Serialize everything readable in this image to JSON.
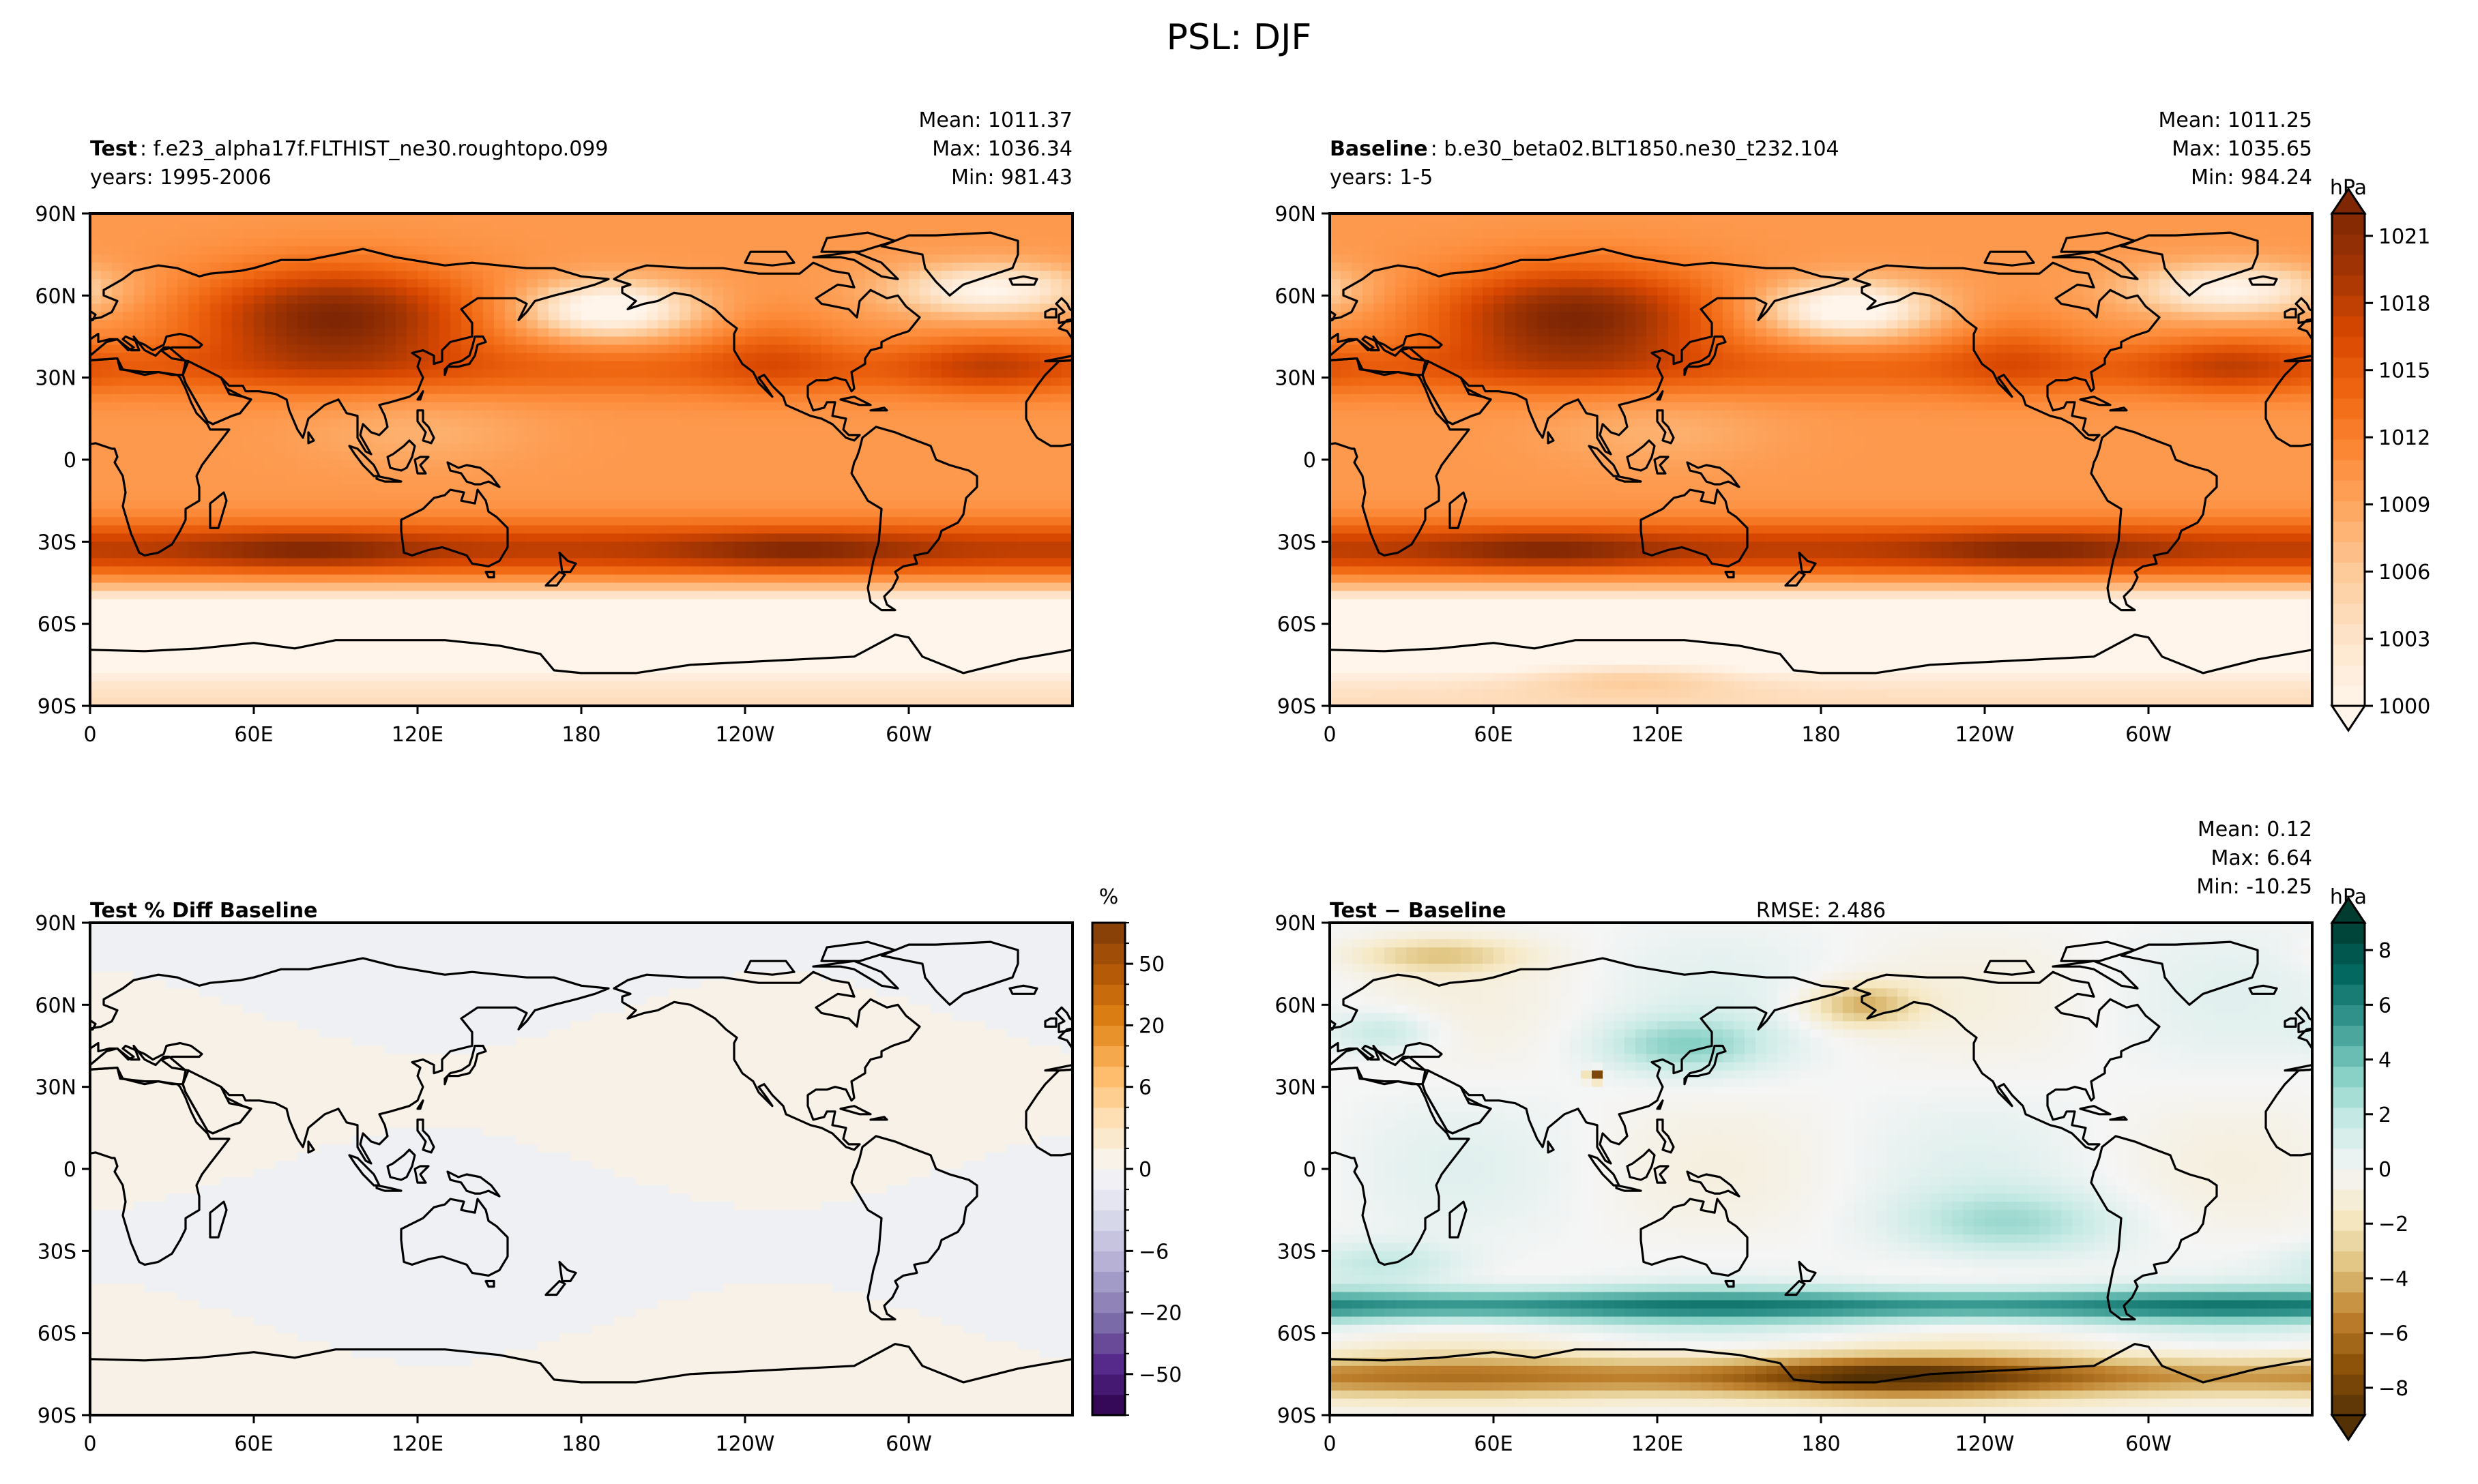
{
  "figure_title": "PSL: DJF",
  "colors": {
    "frame": "#000000",
    "coast": "#000000",
    "ocean_fill_main": "#f4f1ee",
    "psl_scale": [
      "#fff5eb",
      "#fee6ce",
      "#fdd0a2",
      "#fdae6b",
      "#fd8d3c",
      "#f16913",
      "#d94801",
      "#a63603",
      "#7f2704"
    ],
    "diff_pct_scale": [
      "#2d004b",
      "#542788",
      "#8073ac",
      "#b2abd2",
      "#d8daeb",
      "#f7f7f7",
      "#fee0b6",
      "#fdb863",
      "#e08214",
      "#b35806",
      "#7f3b08"
    ],
    "diff_abs_scale": [
      "#543005",
      "#8c510a",
      "#bf812d",
      "#dfc27d",
      "#f6e8c3",
      "#f5f5f5",
      "#c7eae5",
      "#80cdc1",
      "#35978f",
      "#01665e",
      "#003c30"
    ]
  },
  "chart_data": [
    {
      "id": "test",
      "type": "heatmap",
      "title_bold": "Test",
      "title_rest": " : f.e23_alpha17f.FLTHIST_ne30.roughtopo.099",
      "years_label": "years: 1995-2006",
      "stats": {
        "mean": "Mean: 1011.37",
        "max": "Max: 1036.34",
        "min": "Min: 981.43"
      },
      "xticks": [
        "0",
        "60E",
        "120E",
        "180",
        "120W",
        "60W"
      ],
      "yticks": [
        "90N",
        "60N",
        "30N",
        "0",
        "30S",
        "60S",
        "90S"
      ],
      "lat_range": [
        -90,
        90
      ],
      "lon_range": [
        0,
        360
      ],
      "units": "hPa",
      "value_range": [
        1000,
        1022
      ]
    },
    {
      "id": "baseline",
      "type": "heatmap",
      "title_bold": "Baseline",
      "title_rest": " : b.e30_beta02.BLT1850.ne30_t232.104",
      "years_label": "years: 1-5",
      "stats": {
        "mean": "Mean: 1011.25",
        "max": "Max: 1035.65",
        "min": "Min: 984.24"
      },
      "xticks": [
        "0",
        "60E",
        "120E",
        "180",
        "120W",
        "60W"
      ],
      "yticks": [
        "90N",
        "60N",
        "30N",
        "0",
        "30S",
        "60S",
        "90S"
      ],
      "lat_range": [
        -90,
        90
      ],
      "lon_range": [
        0,
        360
      ],
      "units": "hPa",
      "value_range": [
        1000,
        1022
      ],
      "colorbar": {
        "label": "hPa",
        "ticks": [
          "1021",
          "1018",
          "1015",
          "1012",
          "1009",
          "1006",
          "1003",
          "1000"
        ],
        "tick_values": [
          1021,
          1018,
          1015,
          1012,
          1009,
          1006,
          1003,
          1000
        ],
        "range": [
          1000,
          1022
        ]
      }
    },
    {
      "id": "pct_diff",
      "type": "heatmap",
      "title_bold": "Test % Diff Baseline",
      "xticks": [
        "0",
        "60E",
        "120E",
        "180",
        "120W",
        "60W"
      ],
      "yticks": [
        "90N",
        "60N",
        "30N",
        "0",
        "30S",
        "60S",
        "90S"
      ],
      "lat_range": [
        -90,
        90
      ],
      "lon_range": [
        0,
        360
      ],
      "units": "%",
      "colorbar": {
        "label": "%",
        "ticks": [
          "50",
          "20",
          "6",
          "0",
          "−6",
          "−20",
          "−50"
        ],
        "levels": [
          -100,
          -75,
          -50,
          -40,
          -30,
          -20,
          -10,
          -8,
          -6,
          -4,
          -2,
          -1,
          0,
          1,
          2,
          4,
          6,
          8,
          10,
          20,
          30,
          40,
          50,
          75,
          100
        ]
      }
    },
    {
      "id": "abs_diff",
      "type": "heatmap",
      "title_bold": "Test − Baseline",
      "rmse": "RMSE: 2.486",
      "stats": {
        "mean": "Mean:  0.12",
        "max": "Max:  6.64",
        "min": "Min: -10.25"
      },
      "xticks": [
        "0",
        "60E",
        "120E",
        "180",
        "120W",
        "60W"
      ],
      "yticks": [
        "90N",
        "60N",
        "30N",
        "0",
        "30S",
        "60S",
        "90S"
      ],
      "lat_range": [
        -90,
        90
      ],
      "lon_range": [
        0,
        360
      ],
      "units": "hPa",
      "value_range": [
        -9,
        9
      ],
      "colorbar": {
        "label": "hPa",
        "ticks": [
          "8",
          "6",
          "4",
          "2",
          "0",
          "−2",
          "−4",
          "−6",
          "−8"
        ],
        "tick_values": [
          8,
          6,
          4,
          2,
          0,
          -2,
          -4,
          -6,
          -8
        ],
        "range": [
          -9,
          9
        ]
      }
    }
  ]
}
